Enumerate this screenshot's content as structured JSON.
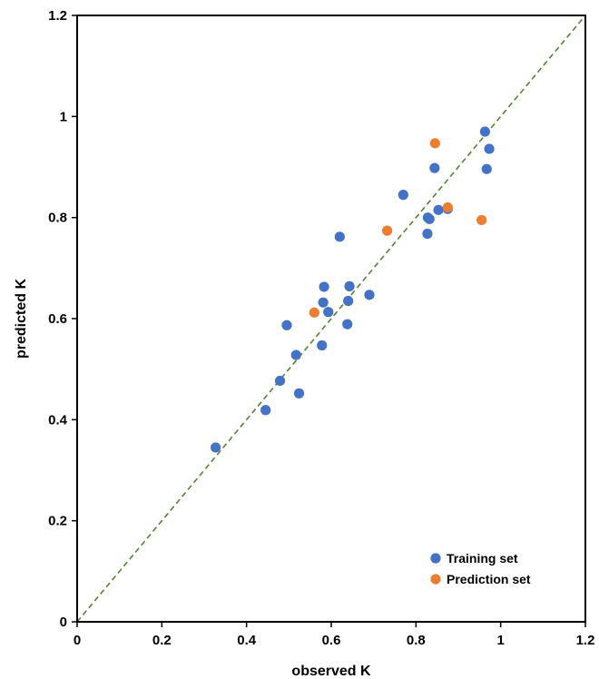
{
  "chart_data": {
    "type": "scatter",
    "xlabel": "observed K",
    "ylabel": "predicted K",
    "xlim": [
      0,
      1.2
    ],
    "ylim": [
      0,
      1.2
    ],
    "x_ticks": [
      "0",
      "0.2",
      "0.4",
      "0.6",
      "0.8",
      "1",
      "1.2"
    ],
    "y_ticks": [
      "0",
      "0.2",
      "0.4",
      "0.6",
      "0.8",
      "1",
      "1.2"
    ],
    "grid": false,
    "legend_position": "bottom-right",
    "reference_line": {
      "x": [
        0,
        1.2
      ],
      "y": [
        0,
        1.2
      ],
      "color": "#548235",
      "style": "dashed"
    },
    "series": [
      {
        "name": "Training set",
        "color": "#4472C4",
        "points": [
          [
            0.327,
            0.345
          ],
          [
            0.445,
            0.419
          ],
          [
            0.479,
            0.477
          ],
          [
            0.495,
            0.587
          ],
          [
            0.517,
            0.528
          ],
          [
            0.524,
            0.452
          ],
          [
            0.578,
            0.547
          ],
          [
            0.581,
            0.632
          ],
          [
            0.583,
            0.663
          ],
          [
            0.593,
            0.613
          ],
          [
            0.62,
            0.762
          ],
          [
            0.638,
            0.589
          ],
          [
            0.64,
            0.635
          ],
          [
            0.643,
            0.664
          ],
          [
            0.69,
            0.647
          ],
          [
            0.77,
            0.845
          ],
          [
            0.827,
            0.768
          ],
          [
            0.828,
            0.8
          ],
          [
            0.832,
            0.797
          ],
          [
            0.844,
            0.898
          ],
          [
            0.853,
            0.815
          ],
          [
            0.875,
            0.817
          ],
          [
            0.963,
            0.97
          ],
          [
            0.967,
            0.896
          ],
          [
            0.973,
            0.936
          ]
        ]
      },
      {
        "name": "Prediction set",
        "color": "#ED7D31",
        "points": [
          [
            0.56,
            0.612
          ],
          [
            0.732,
            0.774
          ],
          [
            0.845,
            0.947
          ],
          [
            0.875,
            0.82
          ],
          [
            0.955,
            0.795
          ]
        ]
      }
    ]
  }
}
